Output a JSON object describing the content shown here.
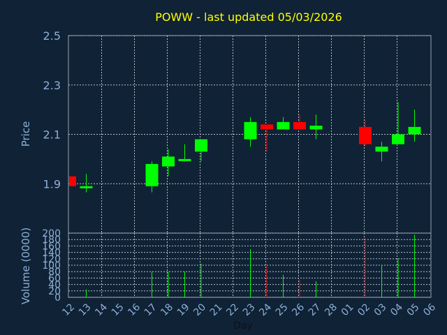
{
  "chart_data": {
    "type": "candlestick",
    "title": "POWW - last updated 05/03/2026",
    "xlabel": "Day",
    "ylabel": "Price",
    "ylim": [
      1.7,
      2.5
    ],
    "yticks": [
      "1.9",
      "2.1",
      "2.3",
      "2.5"
    ],
    "volume_ylabel": "Volume (0000)",
    "volume_ylim": [
      0,
      200
    ],
    "volume_yticks": [
      "0",
      "20",
      "40",
      "60",
      "80",
      "100",
      "120",
      "140",
      "160",
      "180",
      "200"
    ],
    "grid": true,
    "x_labels": [
      "12",
      "13",
      "14",
      "15",
      "16",
      "17",
      "18",
      "19",
      "20",
      "21",
      "22",
      "23",
      "24",
      "25",
      "26",
      "27",
      "28",
      "01",
      "02",
      "03",
      "04",
      "05",
      "06"
    ],
    "candles": [
      {
        "slot": 0,
        "open": 1.93,
        "high": 1.93,
        "low": 1.89,
        "close": 1.89,
        "volume": 0
      },
      {
        "slot": 1,
        "open": 1.885,
        "high": 1.94,
        "low": 1.865,
        "close": 1.89,
        "volume": 25
      },
      {
        "slot": 5,
        "open": 1.89,
        "high": 1.99,
        "low": 1.865,
        "close": 1.98,
        "volume": 80
      },
      {
        "slot": 6,
        "open": 1.97,
        "high": 2.04,
        "low": 1.93,
        "close": 2.01,
        "volume": 80
      },
      {
        "slot": 7,
        "open": 1.995,
        "high": 2.06,
        "low": 1.99,
        "close": 2.0,
        "volume": 80
      },
      {
        "slot": 8,
        "open": 2.03,
        "high": 2.08,
        "low": 1.99,
        "close": 2.08,
        "volume": 105
      },
      {
        "slot": 11,
        "open": 2.08,
        "high": 2.17,
        "low": 2.05,
        "close": 2.15,
        "volume": 150
      },
      {
        "slot": 12,
        "open": 2.14,
        "high": 2.14,
        "low": 2.03,
        "close": 2.12,
        "volume": 100
      },
      {
        "slot": 13,
        "open": 2.12,
        "high": 2.17,
        "low": 2.12,
        "close": 2.15,
        "volume": 70
      },
      {
        "slot": 14,
        "open": 2.15,
        "high": 2.18,
        "low": 2.12,
        "close": 2.12,
        "volume": 55
      },
      {
        "slot": 15,
        "open": 2.12,
        "high": 2.18,
        "low": 2.08,
        "close": 2.135,
        "volume": 50
      },
      {
        "slot": 18,
        "open": 2.13,
        "high": 2.16,
        "low": 2.05,
        "close": 2.06,
        "volume": 185
      },
      {
        "slot": 19,
        "open": 2.03,
        "high": 2.07,
        "low": 1.99,
        "close": 2.05,
        "volume": 100
      },
      {
        "slot": 20,
        "open": 2.06,
        "high": 2.23,
        "low": 2.06,
        "close": 2.1,
        "volume": 120
      },
      {
        "slot": 21,
        "open": 2.1,
        "high": 2.2,
        "low": 2.07,
        "close": 2.13,
        "volume": 195
      }
    ],
    "colors": {
      "up": "#00ff00",
      "down": "#ff0000",
      "background": "#0f2236",
      "title": "#ffff00",
      "axis_text": "#8fb0d6",
      "xlabel_text": "#111111"
    }
  }
}
